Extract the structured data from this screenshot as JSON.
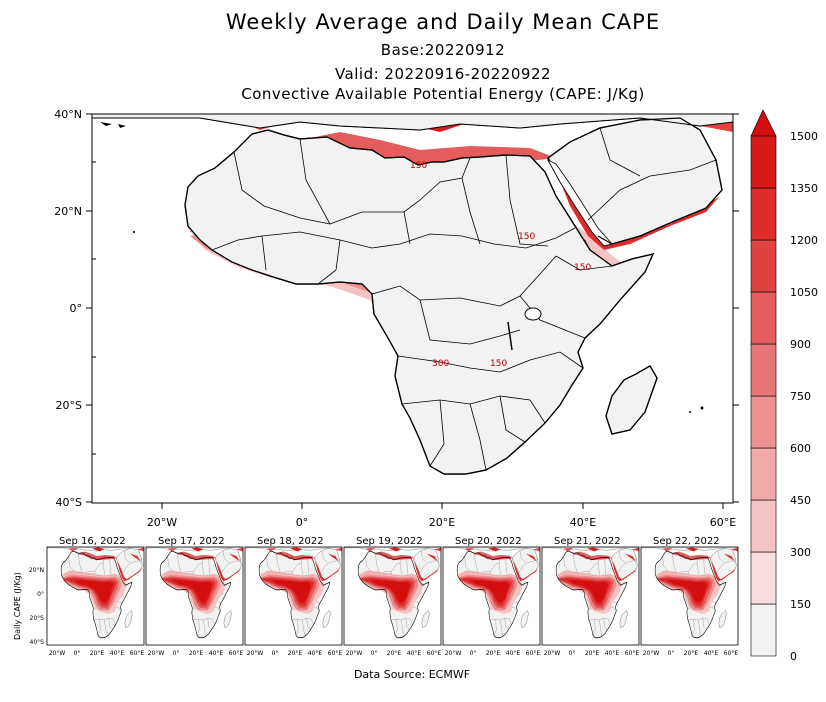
{
  "header": {
    "title": "Weekly Average and Daily Mean CAPE",
    "base": "Base:20220912",
    "valid": "Valid: 20220916-20220922",
    "description": "Convective Available Potential Energy (CAPE: J/Kg)"
  },
  "main_map": {
    "lat_labels": [
      "40°N",
      "20°N",
      "0°",
      "20°S",
      "40°S"
    ],
    "lon_labels": [
      "20°W",
      "0°",
      "20°E",
      "40°E",
      "60°E"
    ],
    "contour_labels": [
      "150",
      "150",
      "150",
      "300",
      "150"
    ],
    "colors": {
      "land": "#f2f2f2",
      "ocean": "#ffffff",
      "border": "#000000"
    }
  },
  "colorbar": {
    "levels": [
      "0",
      "150",
      "300",
      "450",
      "600",
      "750",
      "900",
      "1050",
      "1200",
      "1350",
      "1500"
    ],
    "colors": [
      "#f2f2f2",
      "#f8dede",
      "#f4c4c4",
      "#f0aaaa",
      "#ec9090",
      "#e87676",
      "#e45c5c",
      "#e04242",
      "#dc2c2c",
      "#d81a1a",
      "#d40e0e"
    ]
  },
  "daily_panels": {
    "ylabel": "Daily CAPE (J/Kg)",
    "dates": [
      "Sep 16, 2022",
      "Sep 17, 2022",
      "Sep 18, 2022",
      "Sep 19, 2022",
      "Sep 20, 2022",
      "Sep 21, 2022",
      "Sep 22, 2022"
    ],
    "lat_labels": [
      "20°N",
      "0°",
      "20°S",
      "40°S"
    ],
    "lon_labels": [
      "20°W",
      "0°",
      "20°E",
      "40°E",
      "60°E"
    ]
  },
  "footer": {
    "source": "Data Source: ECMWF"
  }
}
